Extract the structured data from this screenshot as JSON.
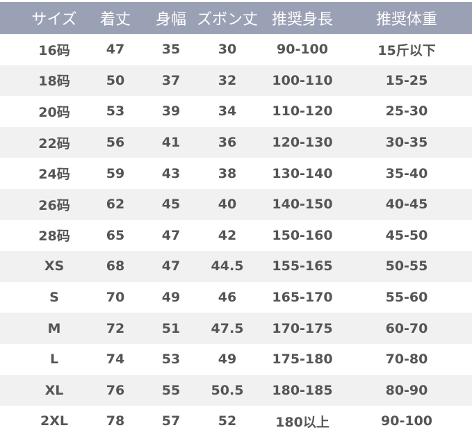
{
  "headers": [
    "サイズ",
    "着丈",
    "身幅",
    "ズボン丈",
    "推奨身長",
    "推奨体重"
  ],
  "rows": [
    [
      "16码",
      "47",
      "35",
      "30",
      "90-100",
      "15斤以下"
    ],
    [
      "18码",
      "50",
      "37",
      "32",
      "100-110",
      "15-25"
    ],
    [
      "20码",
      "53",
      "39",
      "34",
      "110-120",
      "25-30"
    ],
    [
      "22码",
      "56",
      "41",
      "36",
      "120-130",
      "30-35"
    ],
    [
      "24码",
      "59",
      "43",
      "38",
      "130-140",
      "35-40"
    ],
    [
      "26码",
      "62",
      "45",
      "40",
      "140-150",
      "40-45"
    ],
    [
      "28码",
      "65",
      "47",
      "42",
      "150-160",
      "45-50"
    ],
    [
      "XS",
      "68",
      "47",
      "44.5",
      "155-165",
      "50-55"
    ],
    [
      "S",
      "70",
      "49",
      "46",
      "165-170",
      "55-60"
    ],
    [
      "M",
      "72",
      "51",
      "47.5",
      "170-175",
      "60-70"
    ],
    [
      "L",
      "74",
      "53",
      "49",
      "175-180",
      "70-80"
    ],
    [
      "XL",
      "76",
      "55",
      "50.5",
      "180-185",
      "80-90"
    ],
    [
      "2XL",
      "78",
      "57",
      "52",
      "180以上",
      "90-100"
    ]
  ],
  "colors": {
    "header_bg": "#9ba1b5",
    "header_text": "#ffffff",
    "body_text": "#555555",
    "alt_row": "#f1f1f1"
  }
}
